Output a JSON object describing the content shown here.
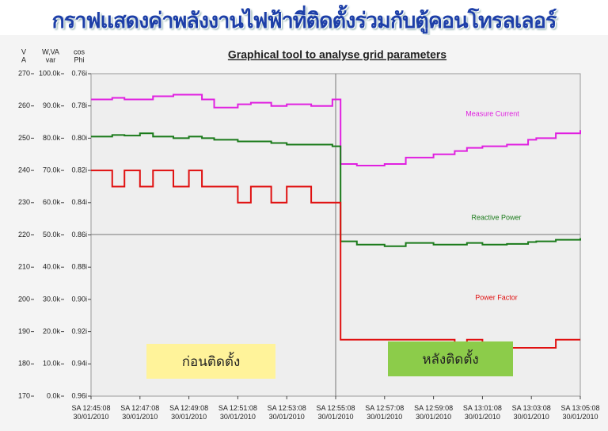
{
  "header": {
    "title": "กราฟแสดงค่าพลังงานไฟฟ้าที่ติดตั้งร่วมกับตู้คอนโทรลเลอร์"
  },
  "chart_data": {
    "type": "line",
    "title": "Graphical tool to analyse grid parameters",
    "y_label": [
      "V",
      "A"
    ],
    "y2_label": [
      "W,VA",
      "var"
    ],
    "y3_label": [
      "cos",
      "Phi"
    ],
    "xlim": [
      "2010-01-30T12:45:08",
      "2010-01-30T13:05:08"
    ],
    "xticks": [
      {
        "value": "2010-01-30T12:45:08",
        "label": "SA 12:45:08 30/01/2010"
      },
      {
        "value": "2010-01-30T12:47:08",
        "label": "SA 12:47:08 30/01/2010"
      },
      {
        "value": "2010-01-30T12:49:08",
        "label": "SA 12:49:08 30/01/2010"
      },
      {
        "value": "2010-01-30T12:51:08",
        "label": "SA 12:51:08 30/01/2010"
      },
      {
        "value": "2010-01-30T12:53:08",
        "label": "SA 12:53:08 30/01/2010"
      },
      {
        "value": "2010-01-30T12:55:08",
        "label": "SA 12:55:08 30/01/2010"
      },
      {
        "value": "2010-01-30T12:57:08",
        "label": "SA 12:57:08 30/01/2010"
      },
      {
        "value": "2010-01-30T12:59:08",
        "label": "SA 12:59:08 30/01/2010"
      },
      {
        "value": "2010-01-30T13:01:08",
        "label": "SA 13:01:08 30/01/2010"
      },
      {
        "value": "2010-01-30T13:03:08",
        "label": "SA 13:03:08 30/01/2010"
      },
      {
        "value": "2010-01-30T13:05:08",
        "label": "SA 13:05:08 30/01/2010"
      }
    ],
    "ylim": [
      170,
      270
    ],
    "yticks": [
      170,
      180,
      190,
      200,
      210,
      220,
      230,
      240,
      250,
      260,
      270
    ],
    "y2lim": [
      0,
      100000
    ],
    "y2ticks": [
      {
        "value": 0,
        "label": "0.0k"
      },
      {
        "value": 10000,
        "label": "10.0k"
      },
      {
        "value": 20000,
        "label": "20.0k"
      },
      {
        "value": 30000,
        "label": "30.0k"
      },
      {
        "value": 40000,
        "label": "40.0k"
      },
      {
        "value": 50000,
        "label": "50.0k"
      },
      {
        "value": 60000,
        "label": "60.0k"
      },
      {
        "value": 70000,
        "label": "70.0k"
      },
      {
        "value": 80000,
        "label": "80.0k"
      },
      {
        "value": 90000,
        "label": "90.0k"
      },
      {
        "value": 100000,
        "label": "100.0k"
      }
    ],
    "y3lim": [
      0.96,
      0.76
    ],
    "y3ticks": [
      {
        "value": 0.96,
        "label": "0.96i"
      },
      {
        "value": 0.94,
        "label": "0.94i"
      },
      {
        "value": 0.92,
        "label": "0.92i"
      },
      {
        "value": 0.9,
        "label": "0.90i"
      },
      {
        "value": 0.88,
        "label": "0.88i"
      },
      {
        "value": 0.86,
        "label": "0.86i"
      },
      {
        "value": 0.84,
        "label": "0.84i"
      },
      {
        "value": 0.82,
        "label": "0.82i"
      },
      {
        "value": 0.8,
        "label": "0.80i"
      },
      {
        "value": 0.78,
        "label": "0.78i"
      },
      {
        "value": 0.76,
        "label": "0.76i"
      }
    ],
    "x": [
      "2010-01-30T12:45:08",
      "2010-01-30T12:46:00",
      "2010-01-30T12:46:30",
      "2010-01-30T12:47:08",
      "2010-01-30T12:47:40",
      "2010-01-30T12:48:30",
      "2010-01-30T12:49:08",
      "2010-01-30T12:49:40",
      "2010-01-30T12:50:10",
      "2010-01-30T12:51:08",
      "2010-01-30T12:51:40",
      "2010-01-30T12:52:30",
      "2010-01-30T12:53:08",
      "2010-01-30T12:54:08",
      "2010-01-30T12:55:00",
      "2010-01-30T12:55:20",
      "2010-01-30T12:56:00",
      "2010-01-30T12:57:08",
      "2010-01-30T12:58:00",
      "2010-01-30T12:59:08",
      "2010-01-30T13:00:00",
      "2010-01-30T13:00:30",
      "2010-01-30T13:01:08",
      "2010-01-30T13:02:08",
      "2010-01-30T13:03:00",
      "2010-01-30T13:03:20",
      "2010-01-30T13:04:08",
      "2010-01-30T13:05:08"
    ],
    "series": [
      {
        "name": "Measure Current",
        "color": "#e020e0",
        "axis": "y",
        "values": [
          262,
          262.5,
          262,
          262,
          263,
          263.5,
          263.5,
          262,
          259.5,
          260.5,
          261,
          260,
          260.5,
          260,
          262,
          242,
          241.5,
          242,
          244,
          245,
          246,
          247,
          247.5,
          248,
          249.5,
          250,
          251.5,
          252.5
        ]
      },
      {
        "name": "Reactive Power",
        "color": "#1a7a1a",
        "axis": "y2",
        "values": [
          80500,
          81000,
          80800,
          81500,
          80500,
          80000,
          80500,
          80000,
          79500,
          79000,
          79000,
          78500,
          78000,
          78000,
          77500,
          48000,
          47000,
          46500,
          47500,
          47000,
          47000,
          47500,
          47000,
          47200,
          47800,
          48000,
          48500,
          49000
        ]
      },
      {
        "name": "Power Factor",
        "color": "#e01010",
        "axis": "y3",
        "values": [
          0.82,
          0.83,
          0.82,
          0.83,
          0.82,
          0.83,
          0.82,
          0.83,
          0.83,
          0.84,
          0.83,
          0.84,
          0.83,
          0.84,
          0.84,
          0.925,
          0.925,
          0.925,
          0.925,
          0.925,
          0.93,
          0.925,
          0.93,
          0.93,
          0.93,
          0.93,
          0.925,
          0.925
        ]
      }
    ],
    "boxes": [
      {
        "text": "ก่อนติดตั้ง",
        "color": "#fff39a"
      },
      {
        "text": "หลังติดตั้ง",
        "color": "#8ccc4a"
      }
    ]
  }
}
